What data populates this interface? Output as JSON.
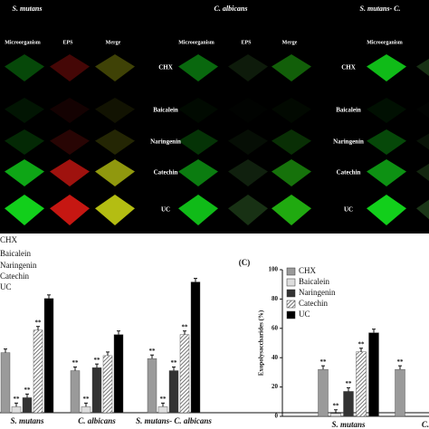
{
  "panel_a": {
    "columns": [
      "S. mutans",
      "C. albicans",
      "S. mutans- C."
    ],
    "channels": [
      "Microorganism",
      "EPS",
      "Merge"
    ],
    "rows": [
      "CHX",
      "Baicalein",
      "Naringenin",
      "Catechin",
      "UC"
    ]
  },
  "chart_data": [
    {
      "type": "bar",
      "categories": [
        "S. mutans",
        "C. albicans",
        "S. mutans- C. albicans"
      ],
      "ylim": [
        0,
        100
      ],
      "series": [
        {
          "name": "CHX",
          "color": "#9a9a9a",
          "values": [
            40,
            28,
            36
          ],
          "annotations": [
            null,
            "**",
            "**"
          ]
        },
        {
          "name": "Baicalein",
          "color": "#dedede",
          "values": [
            4,
            4,
            4
          ],
          "annotations": [
            "**",
            "**",
            "**"
          ]
        },
        {
          "name": "Naringenin",
          "color": "#333333",
          "values": [
            10,
            30,
            28
          ],
          "annotations": [
            "**",
            "**",
            "**"
          ]
        },
        {
          "name": "Catechin",
          "color": "#888888",
          "pattern": "hatch",
          "values": [
            55,
            38,
            52
          ],
          "annotations": [
            "**",
            null,
            "**"
          ]
        },
        {
          "name": "UC",
          "color": "#000000",
          "values": [
            76,
            52,
            87
          ],
          "annotations": [
            null,
            null,
            null
          ]
        }
      ]
    },
    {
      "type": "bar",
      "panel_label": "(C)",
      "y_label": "Exopolysaccharides (%)",
      "categories": [
        "S. mutans",
        "C."
      ],
      "ylim": [
        0,
        100
      ],
      "yticks": [
        0,
        20,
        40,
        60,
        80,
        100
      ],
      "series": [
        {
          "name": "CHX",
          "color": "#9a9a9a",
          "values": [
            32,
            32
          ],
          "annotations": [
            "**",
            "**"
          ]
        },
        {
          "name": "Baicalein",
          "color": "#dedede",
          "values": [
            2,
            null
          ],
          "annotations": [
            "**",
            null
          ]
        },
        {
          "name": "Naringenin",
          "color": "#333333",
          "values": [
            17,
            null
          ],
          "annotations": [
            "**",
            null
          ]
        },
        {
          "name": "Catechin",
          "color": "#888888",
          "pattern": "hatch",
          "values": [
            44,
            null
          ],
          "annotations": [
            "**",
            null
          ]
        },
        {
          "name": "UC",
          "color": "#000000",
          "values": [
            57,
            null
          ],
          "annotations": [
            null,
            null
          ]
        }
      ]
    }
  ]
}
